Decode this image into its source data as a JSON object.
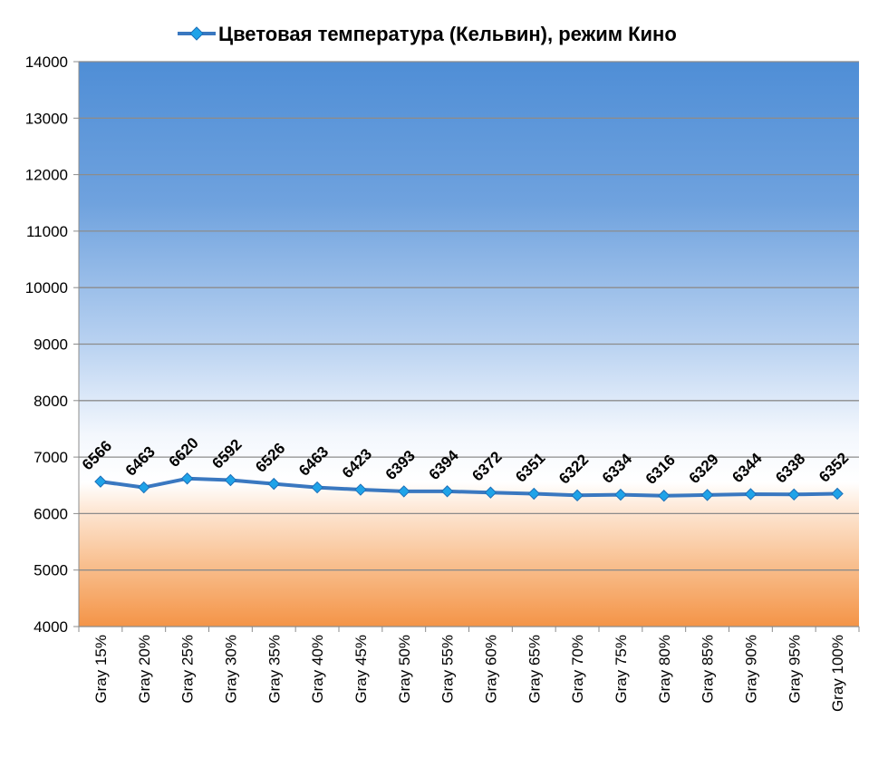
{
  "chart_data": {
    "type": "line",
    "title": "",
    "xlabel": "",
    "ylabel": "",
    "ylim": [
      4000,
      14000
    ],
    "y_ticks": [
      4000,
      5000,
      6000,
      7000,
      8000,
      9000,
      10000,
      11000,
      12000,
      13000,
      14000
    ],
    "grid": true,
    "legend_position": "top",
    "background": "gradient: orange (bottom) to white (~6500) to blue (top)",
    "categories": [
      "Gray 15%",
      "Gray 20%",
      "Gray 25%",
      "Gray 30%",
      "Gray 35%",
      "Gray 40%",
      "Gray 45%",
      "Gray 50%",
      "Gray 55%",
      "Gray 60%",
      "Gray 65%",
      "Gray 70%",
      "Gray 75%",
      "Gray 80%",
      "Gray 85%",
      "Gray 90%",
      "Gray 95%",
      "Gray 100%"
    ],
    "series": [
      {
        "name": "Цветовая температура (Кельвин), режим Кино",
        "color": "#3a78c0",
        "marker_color": "#1fa3e8",
        "values": [
          6566,
          6463,
          6620,
          6592,
          6526,
          6463,
          6423,
          6393,
          6394,
          6372,
          6351,
          6322,
          6334,
          6316,
          6329,
          6344,
          6338,
          6352
        ]
      }
    ]
  }
}
